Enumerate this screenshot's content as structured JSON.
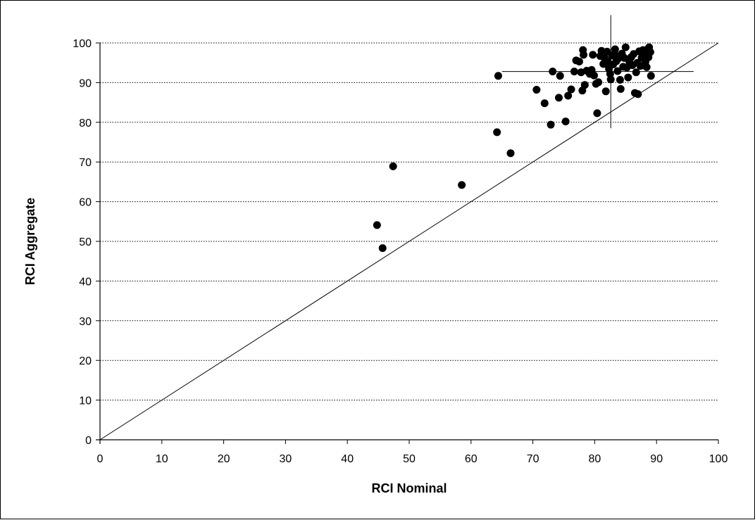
{
  "chart_data": {
    "type": "scatter",
    "xlabel": "RCI Nominal",
    "ylabel": "RCI Aggregate",
    "xlim": [
      0,
      100
    ],
    "ylim": [
      0,
      100
    ],
    "xticks": [
      0,
      10,
      20,
      30,
      40,
      50,
      60,
      70,
      80,
      90,
      100
    ],
    "yticks": [
      0,
      10,
      20,
      30,
      40,
      50,
      60,
      70,
      80,
      90,
      100
    ],
    "grid": "horizontal dotted",
    "reference_line": {
      "from": [
        0,
        0
      ],
      "to": [
        100,
        100
      ]
    },
    "crosshair": {
      "x": 82.6,
      "y": 92.8,
      "x_range": [
        65,
        96
      ],
      "y_range": [
        78.5,
        107
      ]
    },
    "series": [
      {
        "marker_color": "#000000",
        "points": [
          [
            44.8,
            54.1
          ],
          [
            45.7,
            48.3
          ],
          [
            47.4,
            68.9
          ],
          [
            58.5,
            64.2
          ],
          [
            64.2,
            77.5
          ],
          [
            64.4,
            91.7
          ],
          [
            66.4,
            72.2
          ],
          [
            70.6,
            88.2
          ],
          [
            71.9,
            84.8
          ],
          [
            72.9,
            79.4
          ],
          [
            73.2,
            92.8
          ],
          [
            74.2,
            86.2
          ],
          [
            74.4,
            91.7
          ],
          [
            75.3,
            80.2
          ],
          [
            75.7,
            86.7
          ],
          [
            76.2,
            88.3
          ],
          [
            76.7,
            92.8
          ],
          [
            77.0,
            95.6
          ],
          [
            77.5,
            95.3
          ],
          [
            77.8,
            92.6
          ],
          [
            78.0,
            88.0
          ],
          [
            78.2,
            97.0
          ],
          [
            78.1,
            98.2
          ],
          [
            78.4,
            89.4
          ],
          [
            78.7,
            93.0
          ],
          [
            79.2,
            92.2
          ],
          [
            79.5,
            93.2
          ],
          [
            79.7,
            97.0
          ],
          [
            79.9,
            91.8
          ],
          [
            80.2,
            89.7
          ],
          [
            80.4,
            82.3
          ],
          [
            80.6,
            90.1
          ],
          [
            80.9,
            96.7
          ],
          [
            81.1,
            98.0
          ],
          [
            81.4,
            94.7
          ],
          [
            81.6,
            96.2
          ],
          [
            81.8,
            87.8
          ],
          [
            82.0,
            97.8
          ],
          [
            82.1,
            95.3
          ],
          [
            82.3,
            93.5
          ],
          [
            82.5,
            92.2
          ],
          [
            82.6,
            90.8
          ],
          [
            82.8,
            96.8
          ],
          [
            83.0,
            94.6
          ],
          [
            83.2,
            97.3
          ],
          [
            83.3,
            98.4
          ],
          [
            83.5,
            95.4
          ],
          [
            83.7,
            92.9
          ],
          [
            83.9,
            96.2
          ],
          [
            84.1,
            90.7
          ],
          [
            84.2,
            88.4
          ],
          [
            84.4,
            97.3
          ],
          [
            84.6,
            94.0
          ],
          [
            84.8,
            96.2
          ],
          [
            85.0,
            98.9
          ],
          [
            85.2,
            93.8
          ],
          [
            85.4,
            91.3
          ],
          [
            85.6,
            95.3
          ],
          [
            85.9,
            96.4
          ],
          [
            86.1,
            94.4
          ],
          [
            86.3,
            97.2
          ],
          [
            86.5,
            87.4
          ],
          [
            86.7,
            92.6
          ],
          [
            86.9,
            95.0
          ],
          [
            87.0,
            87.1
          ],
          [
            87.2,
            97.9
          ],
          [
            87.4,
            94.2
          ],
          [
            87.6,
            96.3
          ],
          [
            87.8,
            98.2
          ],
          [
            88.0,
            97.4
          ],
          [
            88.2,
            95.2
          ],
          [
            88.4,
            93.9
          ],
          [
            88.6,
            98.5
          ],
          [
            88.7,
            96.4
          ],
          [
            88.8,
            98.9
          ],
          [
            89.0,
            97.7
          ],
          [
            89.1,
            91.7
          ]
        ]
      }
    ]
  }
}
